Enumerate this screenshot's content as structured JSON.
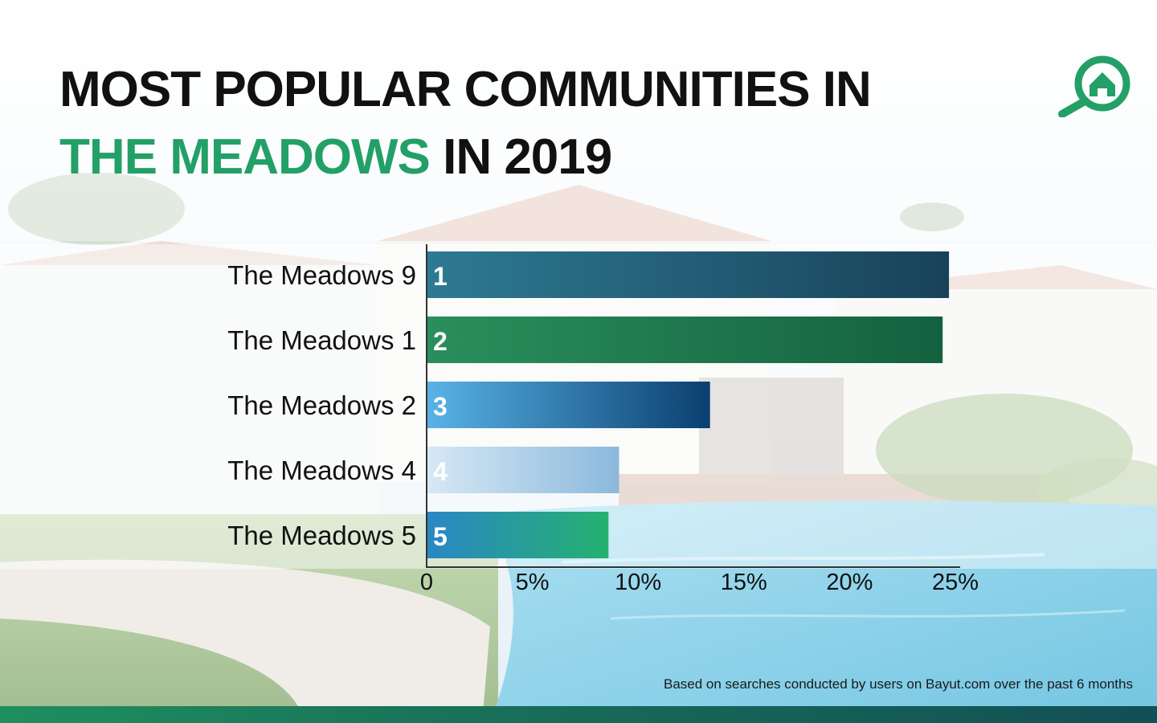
{
  "title": {
    "line1": "MOST POPULAR COMMUNITIES IN",
    "highlight": "THE MEADOWS",
    "line2_rest": " IN 2019",
    "highlight_color": "#23A067"
  },
  "logo": {
    "icon": "magnifier-house-icon",
    "color": "#23A067"
  },
  "chart_data": {
    "type": "bar",
    "orientation": "horizontal",
    "title": "MOST POPULAR COMMUNITIES IN THE MEADOWS IN 2019",
    "categories": [
      "The Meadows 9",
      "The Meadows 1",
      "The Meadows 2",
      "The Meadows 4",
      "The Meadows 5"
    ],
    "values": [
      24.7,
      24.4,
      13.4,
      9.1,
      8.6
    ],
    "ranks": [
      "1",
      "2",
      "3",
      "4",
      "5"
    ],
    "xlim": [
      0,
      25
    ],
    "xticks": [
      0,
      5,
      10,
      15,
      20,
      25
    ],
    "xtick_labels": [
      "0",
      "5%",
      "10%",
      "15%",
      "20%",
      "25%"
    ],
    "xlabel": "",
    "ylabel": "",
    "grid": false,
    "legend": "none",
    "bar_gradients": [
      [
        "#2d7a92",
        "#18425a"
      ],
      [
        "#2a8f5c",
        "#14613f"
      ],
      [
        "#59b3e6",
        "#0a3f70"
      ],
      [
        "#d6e8f5",
        "#8bb9dc"
      ],
      [
        "#2a87c4",
        "#25b170"
      ]
    ]
  },
  "footnote": "Based on searches conducted by users on Bayut.com over the past 6 months",
  "colors": {
    "accent": "#23A067",
    "bottom_bar": "#176a58"
  }
}
